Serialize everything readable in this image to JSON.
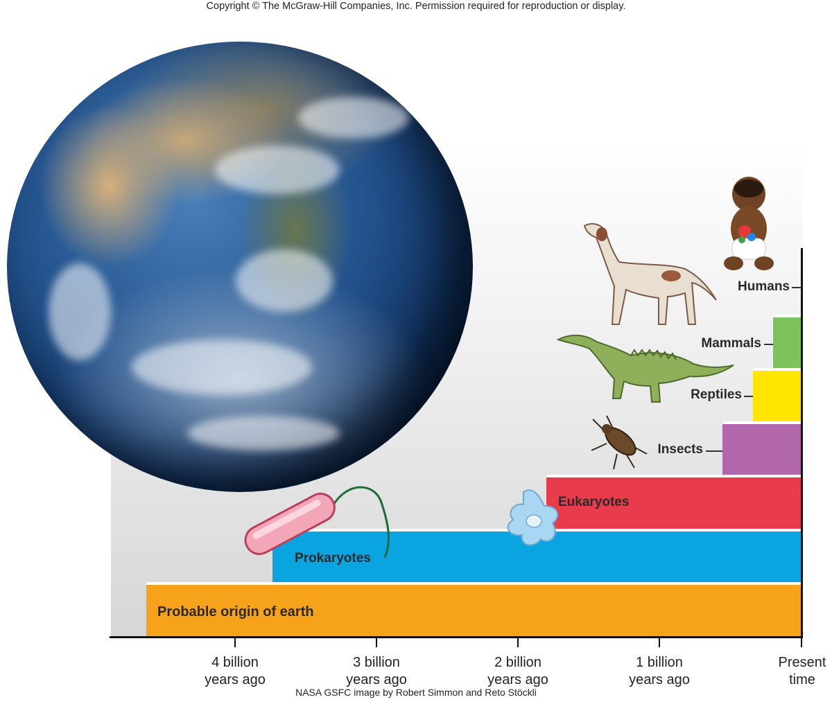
{
  "copyright": "Copyright © The McGraw-Hill Companies, Inc. Permission required for reproduction or display.",
  "credit": "NASA GSFC image by Robert Simmon and Reto Stöckli",
  "timeline": {
    "ticks": [
      {
        "label": "4 billion\nyears ago"
      },
      {
        "label": "3 billion\nyears ago"
      },
      {
        "label": "2 billion\nyears ago"
      },
      {
        "label": "1 billion\nyears ago"
      },
      {
        "label": "Present\ntime"
      }
    ],
    "bars": [
      {
        "label": "Probable origin of earth",
        "color": "#f6a31b"
      },
      {
        "label": "Prokaryotes",
        "color": "#0aa5e0"
      },
      {
        "label": "Eukaryotes",
        "color": "#e83c4c"
      },
      {
        "label": "Insects",
        "color": "#b266ab"
      },
      {
        "label": "Reptiles",
        "color": "#ffe600"
      },
      {
        "label": "Mammals",
        "color": "#7bc35a"
      },
      {
        "label": "Humans",
        "color": ""
      }
    ]
  },
  "illustrations": [
    "earth-globe",
    "bacterium-icon",
    "amoeba-icon",
    "beetle-icon",
    "dinosaur-icon",
    "dog-icon",
    "baby-icon"
  ]
}
